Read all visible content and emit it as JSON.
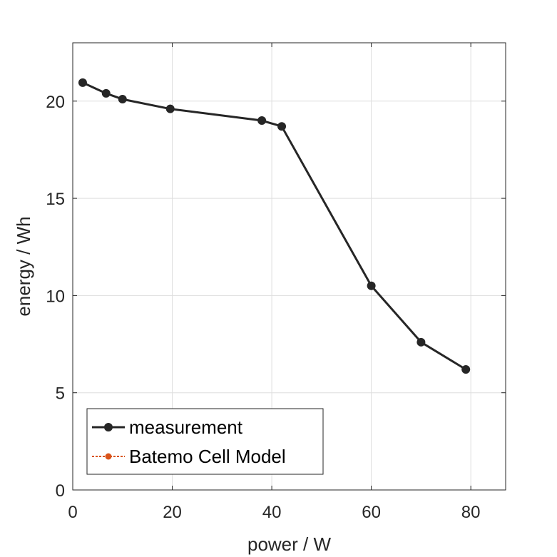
{
  "chart_data": {
    "type": "line",
    "title": "",
    "xlabel": "power / W",
    "ylabel": "energy / Wh",
    "xlim": [
      0,
      87
    ],
    "ylim": [
      0,
      23
    ],
    "xticks": [
      0,
      20,
      40,
      60,
      80
    ],
    "yticks": [
      0,
      5,
      10,
      15,
      20
    ],
    "xtick_labels": [
      "0",
      "20",
      "40",
      "60",
      "80"
    ],
    "ytick_labels": [
      "0",
      "5",
      "10",
      "15",
      "20"
    ],
    "grid": true,
    "legend_position": "bottom-left",
    "series": [
      {
        "name": "measurement",
        "color": "#262626",
        "line_style": "solid",
        "marker": "circle",
        "x": [
          2,
          6.7,
          10,
          19.6,
          38,
          42,
          60,
          70,
          79
        ],
        "y": [
          20.95,
          20.4,
          20.1,
          19.6,
          19.0,
          18.7,
          10.5,
          7.6,
          6.2
        ]
      },
      {
        "name": "Batemo Cell Model",
        "color": "#D95319",
        "line_style": "dotted",
        "marker": "circle",
        "x": [],
        "y": []
      }
    ]
  }
}
